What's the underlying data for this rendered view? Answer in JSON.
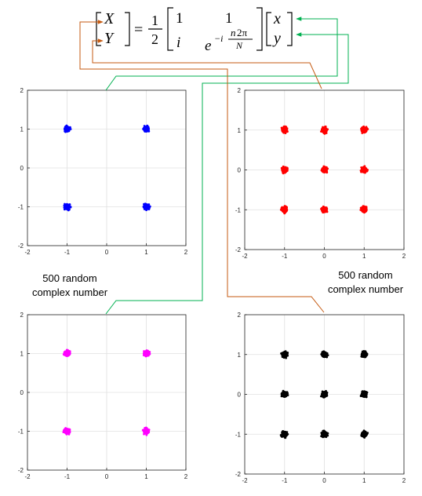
{
  "equation": {
    "lhs_top": "X",
    "lhs_bottom": "Y",
    "equals": "=",
    "frac_num": "1",
    "frac_den": "2",
    "m11": "1",
    "m12": "1",
    "m21": "i",
    "m22_base": "e",
    "m22_exp_sign": "−i",
    "m22_exp_n": "n",
    "m22_exp_num_rest": "2π",
    "m22_exp_den": "N",
    "rhs_top": "x",
    "rhs_bottom": "y",
    "n_color": "#ff0000"
  },
  "annotations": {
    "left_line1": "500 random",
    "left_line2": "complex number",
    "right_line1": "500 random",
    "right_line2": "complex number"
  },
  "colors": {
    "green_arrow": "#00b050",
    "orange_arrow": "#c55a11",
    "grid": "#e0e0e0",
    "axes_frame": "#262626"
  },
  "chart_data": [
    {
      "type": "scatter",
      "panel": "top-left",
      "color": "#0000ff",
      "xlim": [
        -2,
        2
      ],
      "ylim": [
        -2,
        2
      ],
      "xticks": [
        "-2",
        "-1",
        "0",
        "1",
        "2"
      ],
      "yticks": [
        "-2",
        "-1",
        "0",
        "1",
        "2"
      ],
      "grid": true,
      "clusters": [
        [
          -1,
          1
        ],
        [
          1,
          1
        ],
        [
          -1,
          -1
        ],
        [
          1,
          -1
        ]
      ]
    },
    {
      "type": "scatter",
      "panel": "top-right",
      "color": "#ff0000",
      "xlim": [
        -2,
        2
      ],
      "ylim": [
        -2,
        2
      ],
      "xticks": [
        "-2",
        "-1",
        "0",
        "1",
        "2"
      ],
      "yticks": [
        "-2",
        "-1",
        "0",
        "1",
        "2"
      ],
      "grid": true,
      "clusters": [
        [
          -1,
          1
        ],
        [
          0,
          1
        ],
        [
          1,
          1
        ],
        [
          -1,
          0
        ],
        [
          0,
          0
        ],
        [
          1,
          0
        ],
        [
          -1,
          -1
        ],
        [
          0,
          -1
        ],
        [
          1,
          -1
        ]
      ]
    },
    {
      "type": "scatter",
      "panel": "bottom-left",
      "color": "#ff00ff",
      "xlim": [
        -2,
        2
      ],
      "ylim": [
        -2,
        2
      ],
      "xticks": [
        "-2",
        "-1",
        "0",
        "1",
        "2"
      ],
      "yticks": [
        "-2",
        "-1",
        "0",
        "1",
        "2"
      ],
      "grid": true,
      "clusters": [
        [
          -1,
          1
        ],
        [
          1,
          1
        ],
        [
          -1,
          -1
        ],
        [
          1,
          -1
        ]
      ]
    },
    {
      "type": "scatter",
      "panel": "bottom-right",
      "color": "#000000",
      "xlim": [
        -2,
        2
      ],
      "ylim": [
        -2,
        2
      ],
      "xticks": [
        "-2",
        "-1",
        "0",
        "1",
        "2"
      ],
      "yticks": [
        "-2",
        "-1",
        "0",
        "1",
        "2"
      ],
      "grid": true,
      "clusters": [
        [
          -1,
          1
        ],
        [
          0,
          1
        ],
        [
          1,
          1
        ],
        [
          -1,
          0
        ],
        [
          0,
          0
        ],
        [
          1,
          0
        ],
        [
          -1,
          -1
        ],
        [
          0,
          -1
        ],
        [
          1,
          -1
        ]
      ]
    }
  ]
}
